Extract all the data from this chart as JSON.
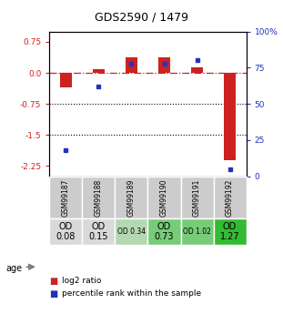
{
  "title": "GDS2590 / 1479",
  "samples": [
    "GSM99187",
    "GSM99188",
    "GSM99189",
    "GSM99190",
    "GSM99191",
    "GSM99192"
  ],
  "log2_ratio": [
    -0.35,
    0.08,
    0.38,
    0.38,
    0.13,
    -2.1
  ],
  "percentile_rank": [
    18,
    62,
    78,
    78,
    80,
    5
  ],
  "bar_width": 0.35,
  "ylim_left": [
    -2.5,
    1.0
  ],
  "ylim_right": [
    0,
    100
  ],
  "yticks_left": [
    0.75,
    0.0,
    -0.75,
    -1.5,
    -2.25
  ],
  "yticks_right": [
    100,
    75,
    50,
    25,
    0
  ],
  "hlines": [
    -0.75,
    -1.5
  ],
  "red_color": "#cc2222",
  "blue_color": "#2233bb",
  "age_labels": [
    "OD\n0.08",
    "OD\n0.15",
    "OD 0.34",
    "OD\n0.73",
    "OD 1.02",
    "OD\n1.27"
  ],
  "age_colors": [
    "#d9d9d9",
    "#d9d9d9",
    "#b3d9b3",
    "#77cc77",
    "#77cc77",
    "#33bb33"
  ],
  "sample_bg": "#cccccc",
  "legend_items": [
    "log2 ratio",
    "percentile rank within the sample"
  ]
}
